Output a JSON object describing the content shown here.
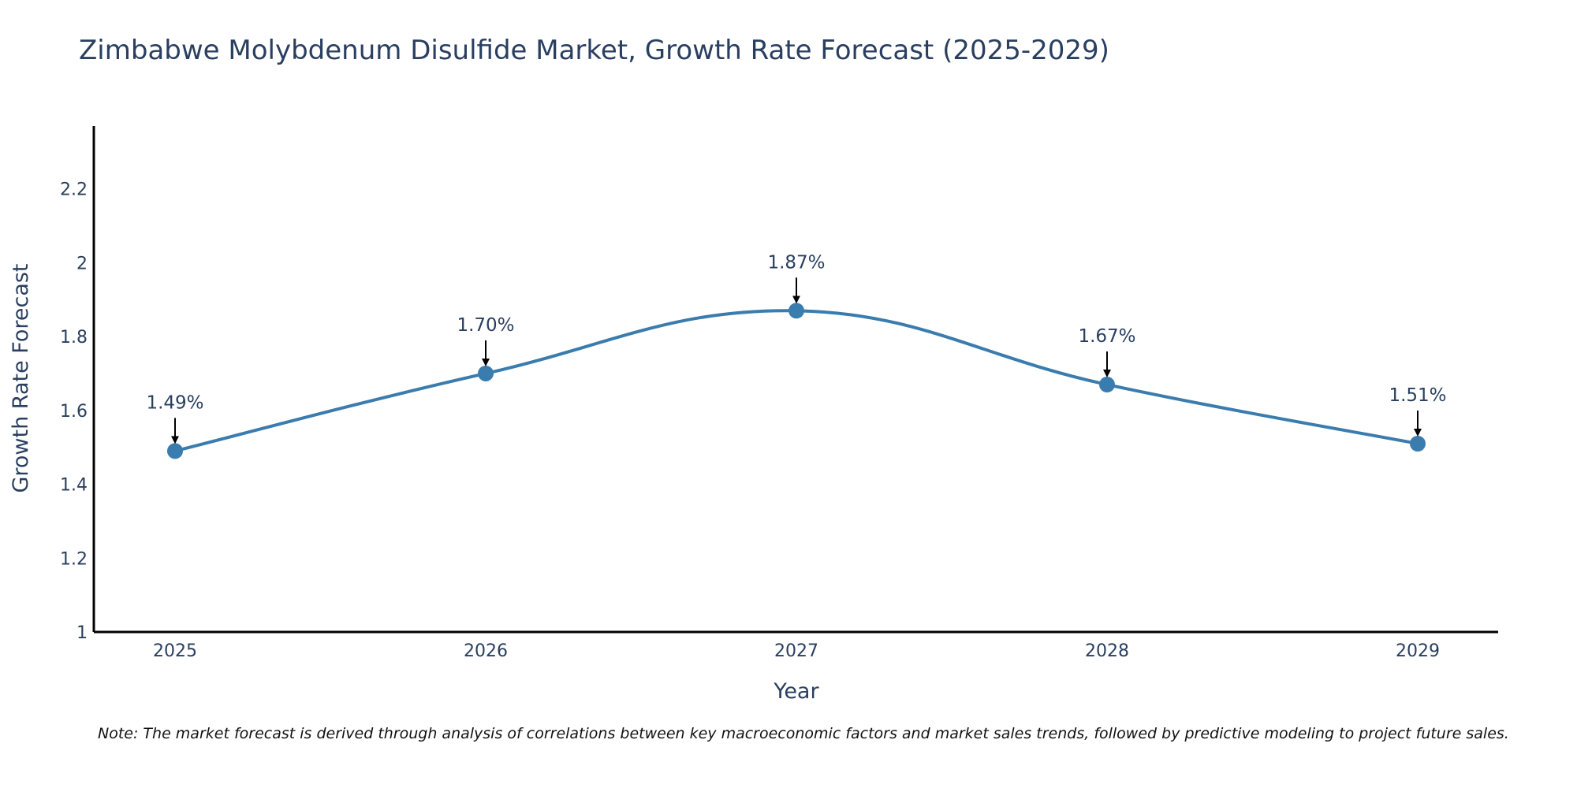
{
  "chart_data": {
    "type": "line",
    "title": "Zimbabwe Molybdenum Disulfide Market, Growth Rate Forecast (2025-2029)",
    "xlabel": "Year",
    "ylabel": "Growth Rate Forecast",
    "categories": [
      "2025",
      "2026",
      "2027",
      "2028",
      "2029"
    ],
    "values": [
      1.49,
      1.7,
      1.87,
      1.67,
      1.51
    ],
    "data_labels": [
      "1.49%",
      "1.70%",
      "1.87%",
      "1.67%",
      "1.51%"
    ],
    "ylim": [
      1,
      2.37
    ],
    "yticks": [
      1,
      1.2,
      1.4,
      1.6,
      1.8,
      2,
      2.2
    ],
    "ytick_labels": [
      "1",
      "1.2",
      "1.4",
      "1.6",
      "1.8",
      "2",
      "2.2"
    ],
    "grid": false,
    "line_color": "#3a7cae"
  },
  "note": "Note: The market forecast is derived through analysis of correlations between key macroeconomic factors and market sales trends, followed by predictive modeling to project future sales."
}
